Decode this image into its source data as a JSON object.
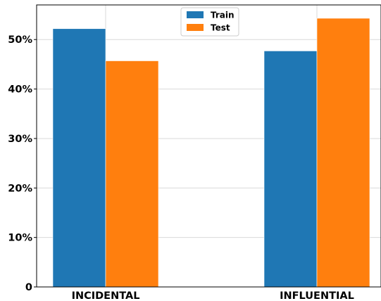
{
  "chart_data": {
    "type": "bar",
    "categories": [
      "INCIDENTAL",
      "INFLUENTIAL"
    ],
    "series": [
      {
        "name": "Train",
        "values": [
          52.2,
          47.7
        ],
        "color": "#1f77b4"
      },
      {
        "name": "Test",
        "values": [
          45.7,
          54.3
        ],
        "color": "#ff7f0e"
      }
    ],
    "ylim": [
      0,
      57
    ],
    "yticks": [
      0,
      10,
      20,
      30,
      40,
      50
    ],
    "ytick_labels": [
      "0",
      "10%",
      "20%",
      "30%",
      "40%",
      "50%"
    ],
    "grid": true,
    "legend": "top-center"
  }
}
